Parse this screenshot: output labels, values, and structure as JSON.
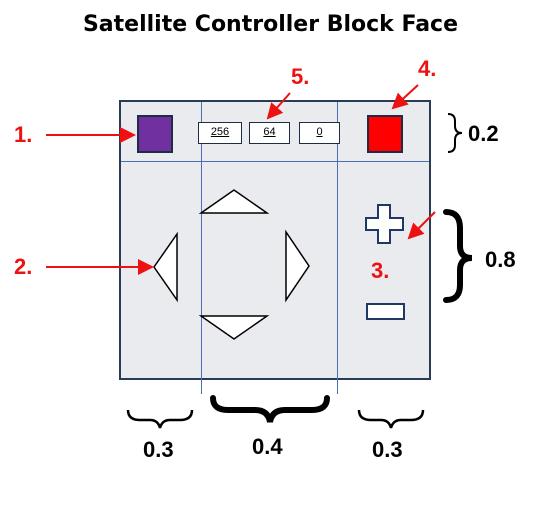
{
  "title": "Satellite Controller Block Face",
  "colors": {
    "swatch_left": "#7030a0",
    "swatch_right": "#ff0000",
    "annotation": "#ee1111",
    "panel_bg": "#eaebef",
    "grid_line": "#4a72b0"
  },
  "top_row": {
    "values": [
      "256",
      "64",
      "0"
    ]
  },
  "controls": {
    "arrows": [
      "up-arrow-icon",
      "down-arrow-icon",
      "left-arrow-icon",
      "right-arrow-icon"
    ],
    "plus": "plus-icon",
    "minus": "minus-icon"
  },
  "callouts": {
    "c1": "1.",
    "c2": "2.",
    "c3": "3.",
    "c4": "4.",
    "c5": "5."
  },
  "dimensions": {
    "top_row_height": "0.2",
    "bottom_height": "0.8",
    "left_col": "0.3",
    "mid_col": "0.4",
    "right_col": "0.3"
  }
}
